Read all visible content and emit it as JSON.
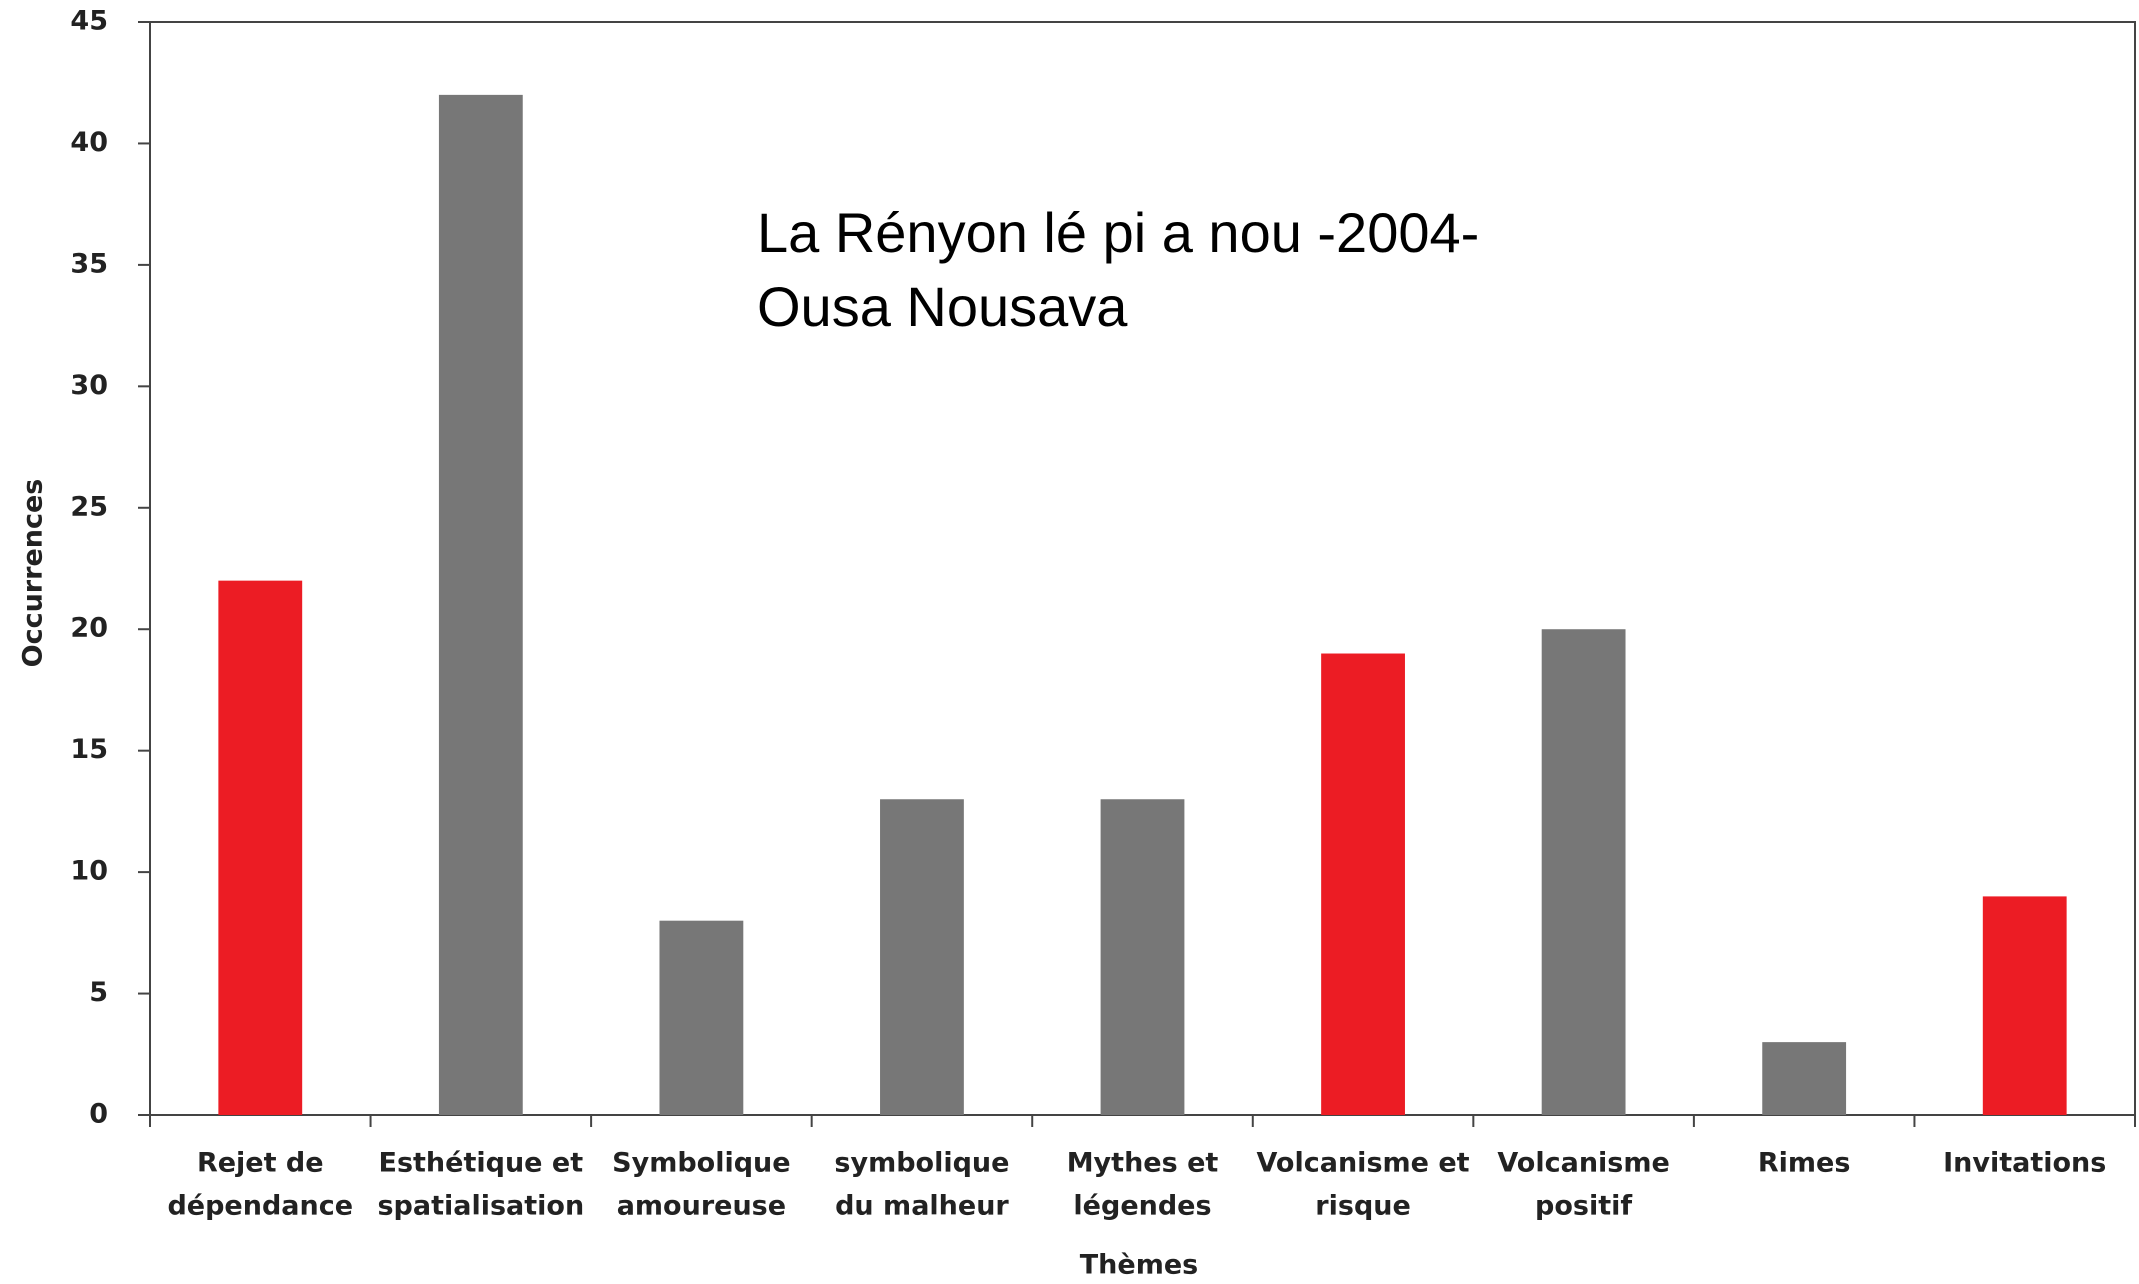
{
  "chart_data": {
    "type": "bar",
    "xlabel": "Thèmes",
    "ylabel": "Occurrences",
    "annotation": [
      "La Rényon lé pi a nou -2004-",
      "Ousa Nousava"
    ],
    "categories": [
      [
        "Rejet de",
        "dépendance"
      ],
      [
        "Esthétique et",
        "spatialisation"
      ],
      [
        "Symbolique",
        "amoureuse"
      ],
      [
        "symbolique",
        "du malheur"
      ],
      [
        "Mythes et",
        "légendes"
      ],
      [
        "Volcanisme et",
        "risque"
      ],
      [
        "Volcanisme",
        "positif"
      ],
      [
        "Rimes"
      ],
      [
        "Invitations"
      ]
    ],
    "values": [
      22,
      42,
      8,
      13,
      13,
      19,
      20,
      3,
      9
    ],
    "colors": [
      "#ec1c24",
      "#777777",
      "#777777",
      "#777777",
      "#777777",
      "#ec1c24",
      "#777777",
      "#777777",
      "#ec1c24"
    ],
    "ylim": [
      0,
      45
    ],
    "yticks": [
      0,
      5,
      10,
      15,
      20,
      25,
      30,
      35,
      40,
      45
    ],
    "grid": false
  }
}
